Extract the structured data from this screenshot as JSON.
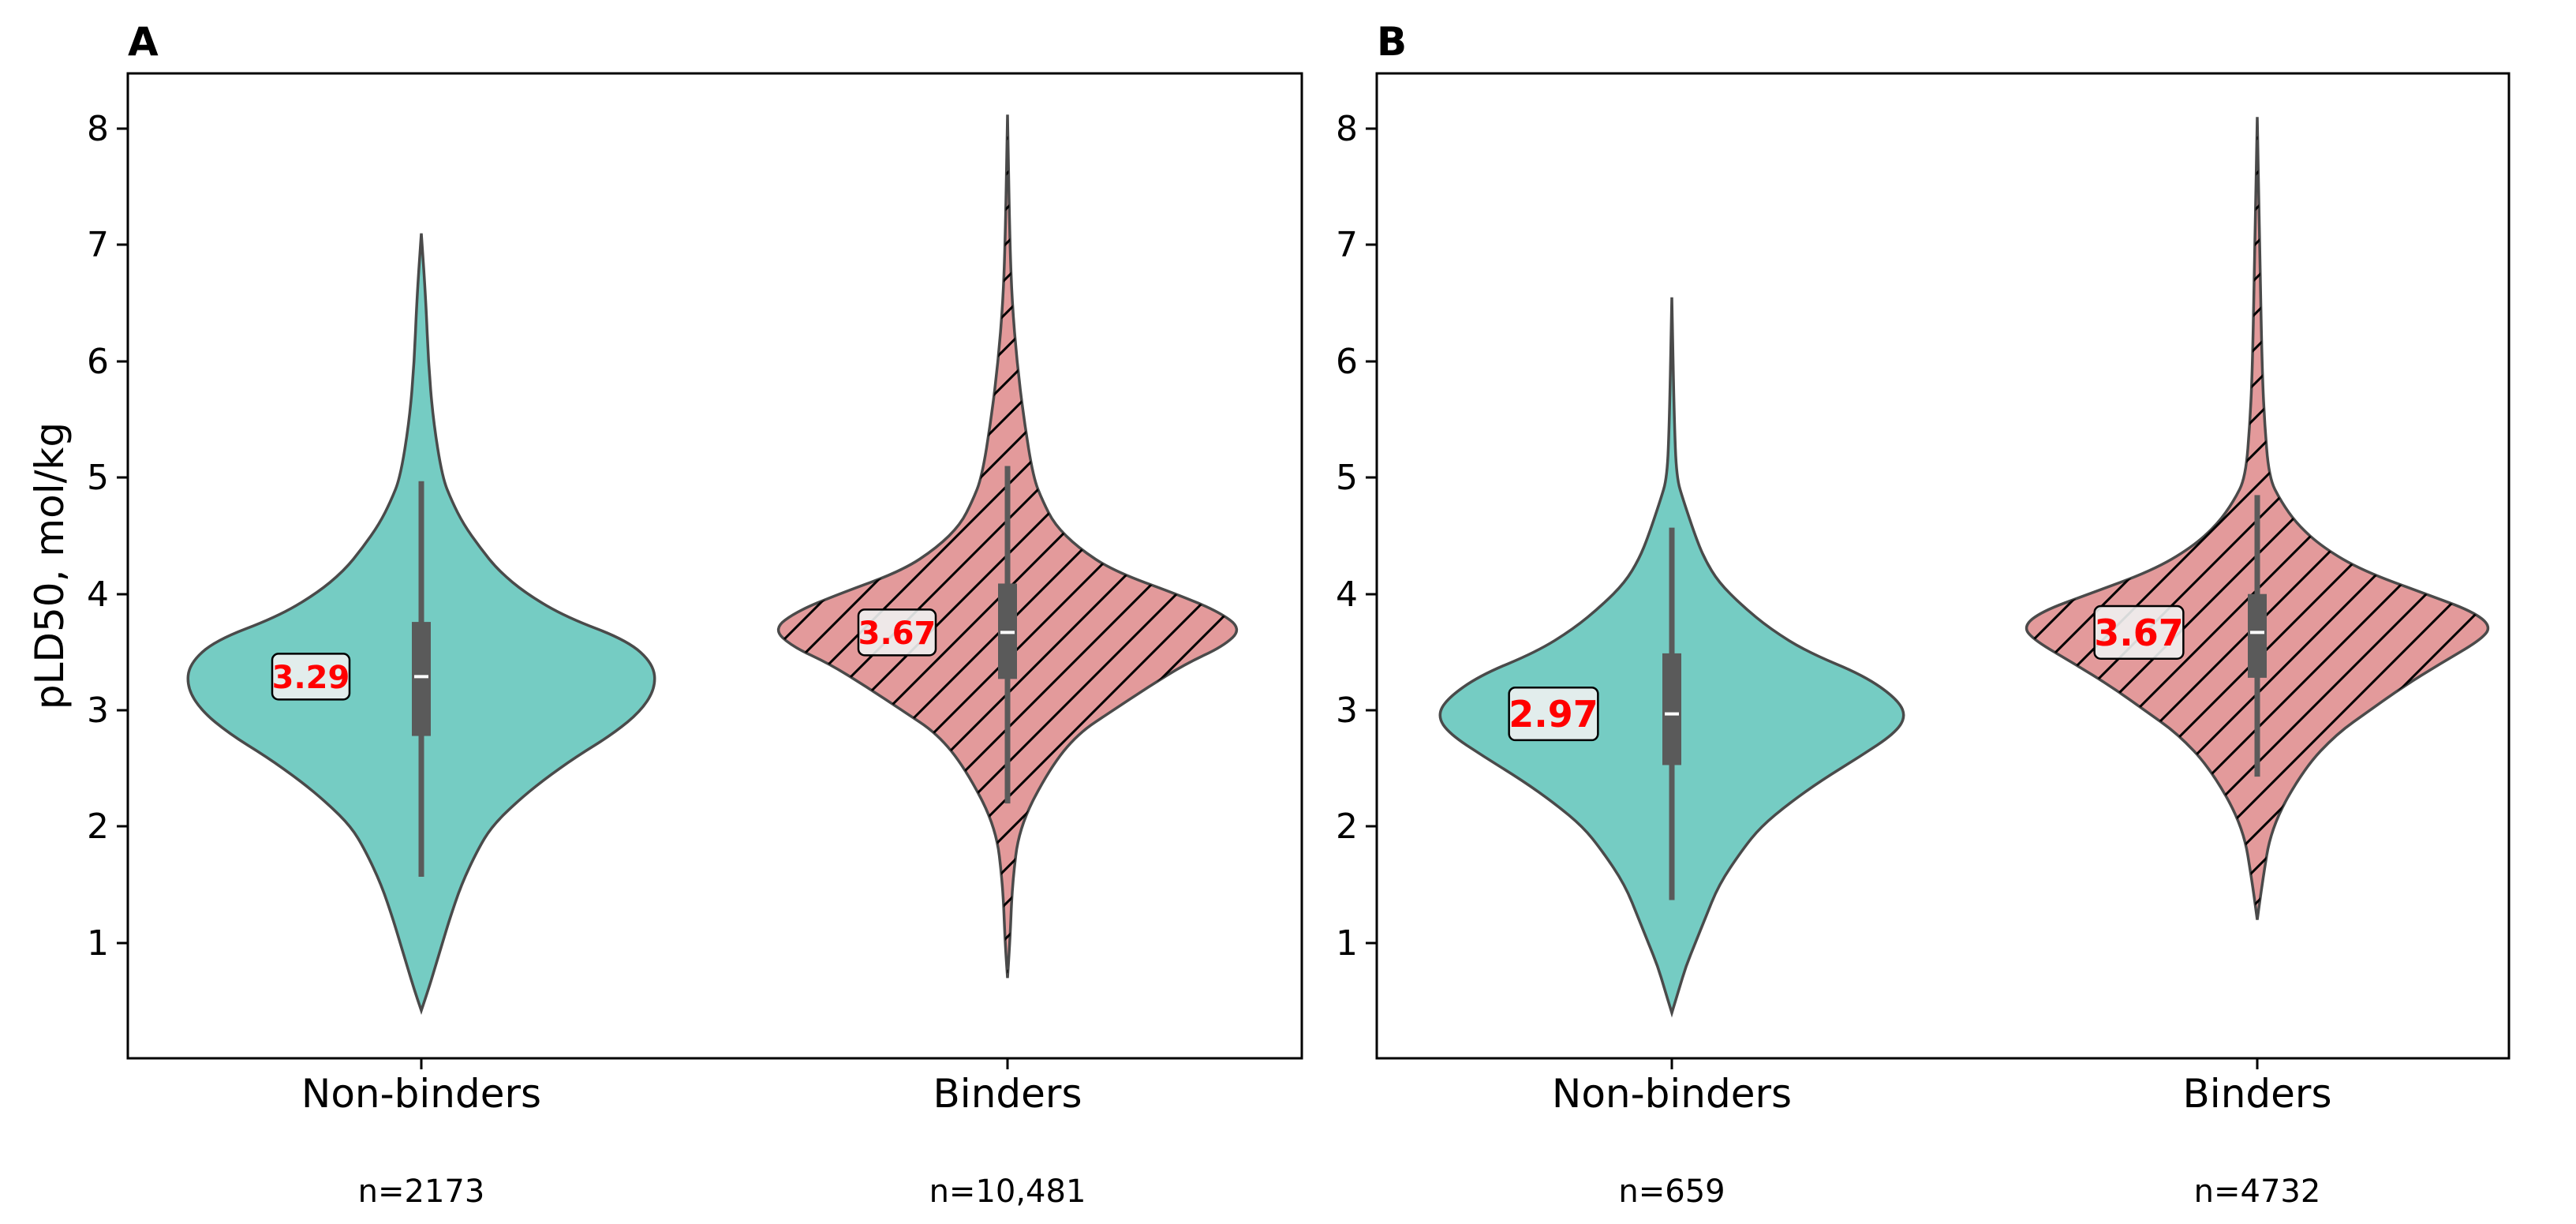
{
  "colors": {
    "non_binders_fill": "#75ccc3",
    "binders_fill": "#e39a9b",
    "violin_stroke": "#4a4a4a",
    "box_color": "#5a5a5a",
    "median_label_color": "#ff0000",
    "label_box_bg": "#eef1f1"
  },
  "chart_data": [
    {
      "type": "violin",
      "panel_label": "A",
      "ylabel": "pLD50, mol/kg",
      "ylim": [
        0.0,
        8.5
      ],
      "yticks": [
        1,
        2,
        3,
        4,
        5,
        6,
        7,
        8
      ],
      "categories": [
        "Non-binders",
        "Binders"
      ],
      "series": [
        {
          "name": "Non-binders",
          "n_label": "n=2173",
          "median": 3.29,
          "median_label": "3.29",
          "q1": 2.78,
          "q3": 3.76,
          "whisker_low": 1.57,
          "whisker_high": 4.97,
          "min": 0.42,
          "max": 7.1,
          "hatched": false,
          "density": [
            [
              0.42,
              0.0
            ],
            [
              0.6,
              0.03
            ],
            [
              0.8,
              0.06
            ],
            [
              1.0,
              0.09
            ],
            [
              1.2,
              0.12
            ],
            [
              1.5,
              0.17
            ],
            [
              1.8,
              0.24
            ],
            [
              2.0,
              0.3
            ],
            [
              2.2,
              0.4
            ],
            [
              2.4,
              0.52
            ],
            [
              2.6,
              0.66
            ],
            [
              2.8,
              0.82
            ],
            [
              3.0,
              0.94
            ],
            [
              3.2,
              1.0
            ],
            [
              3.4,
              0.99
            ],
            [
              3.6,
              0.88
            ],
            [
              3.8,
              0.62
            ],
            [
              4.0,
              0.45
            ],
            [
              4.2,
              0.33
            ],
            [
              4.4,
              0.25
            ],
            [
              4.6,
              0.18
            ],
            [
              4.8,
              0.13
            ],
            [
              5.0,
              0.09
            ],
            [
              5.5,
              0.05
            ],
            [
              6.0,
              0.03
            ],
            [
              6.5,
              0.02
            ],
            [
              7.1,
              0.0
            ]
          ]
        },
        {
          "name": "Binders",
          "n_label": "n=10,481",
          "median": 3.67,
          "median_label": "3.67",
          "q1": 3.27,
          "q3": 4.09,
          "whisker_low": 2.2,
          "whisker_high": 5.1,
          "min": 0.7,
          "max": 8.12,
          "hatched": true,
          "density": [
            [
              0.7,
              0.0
            ],
            [
              1.0,
              0.01
            ],
            [
              1.5,
              0.02
            ],
            [
              2.0,
              0.05
            ],
            [
              2.5,
              0.18
            ],
            [
              2.8,
              0.3
            ],
            [
              3.0,
              0.45
            ],
            [
              3.2,
              0.6
            ],
            [
              3.4,
              0.76
            ],
            [
              3.55,
              0.92
            ],
            [
              3.7,
              1.0
            ],
            [
              3.85,
              0.9
            ],
            [
              4.0,
              0.72
            ],
            [
              4.2,
              0.45
            ],
            [
              4.4,
              0.3
            ],
            [
              4.6,
              0.2
            ],
            [
              4.8,
              0.15
            ],
            [
              5.0,
              0.11
            ],
            [
              5.5,
              0.07
            ],
            [
              6.0,
              0.04
            ],
            [
              6.5,
              0.02
            ],
            [
              7.0,
              0.01
            ],
            [
              8.12,
              0.0
            ]
          ]
        }
      ]
    },
    {
      "type": "violin",
      "panel_label": "B",
      "ylabel": "",
      "ylim": [
        0.0,
        8.5
      ],
      "yticks": [
        1,
        2,
        3,
        4,
        5,
        6,
        7,
        8
      ],
      "categories": [
        "Non-binders",
        "Binders"
      ],
      "series": [
        {
          "name": "Non-binders",
          "n_label": "n=659",
          "median": 2.97,
          "median_label": "2.97",
          "q1": 2.53,
          "q3": 3.49,
          "whisker_low": 1.37,
          "whisker_high": 4.57,
          "min": 0.4,
          "max": 6.55,
          "hatched": false,
          "density": [
            [
              0.4,
              0.0
            ],
            [
              0.6,
              0.03
            ],
            [
              0.8,
              0.06
            ],
            [
              1.0,
              0.1
            ],
            [
              1.2,
              0.14
            ],
            [
              1.5,
              0.2
            ],
            [
              1.8,
              0.3
            ],
            [
              2.0,
              0.38
            ],
            [
              2.2,
              0.5
            ],
            [
              2.4,
              0.64
            ],
            [
              2.6,
              0.8
            ],
            [
              2.8,
              0.95
            ],
            [
              2.95,
              1.0
            ],
            [
              3.1,
              0.96
            ],
            [
              3.3,
              0.82
            ],
            [
              3.5,
              0.58
            ],
            [
              3.7,
              0.42
            ],
            [
              3.9,
              0.3
            ],
            [
              4.1,
              0.2
            ],
            [
              4.3,
              0.14
            ],
            [
              4.5,
              0.1
            ],
            [
              4.8,
              0.05
            ],
            [
              5.0,
              0.02
            ],
            [
              5.5,
              0.01
            ],
            [
              6.55,
              0.0
            ]
          ]
        },
        {
          "name": "Binders",
          "n_label": "n=4732",
          "median": 3.67,
          "median_label": "3.67",
          "q1": 3.28,
          "q3": 4.0,
          "whisker_low": 2.43,
          "whisker_high": 4.85,
          "min": 1.2,
          "max": 8.1,
          "hatched": true,
          "density": [
            [
              1.2,
              0.0
            ],
            [
              1.5,
              0.02
            ],
            [
              2.0,
              0.06
            ],
            [
              2.5,
              0.2
            ],
            [
              2.8,
              0.34
            ],
            [
              3.0,
              0.48
            ],
            [
              3.2,
              0.62
            ],
            [
              3.4,
              0.78
            ],
            [
              3.6,
              0.95
            ],
            [
              3.72,
              1.0
            ],
            [
              3.85,
              0.92
            ],
            [
              4.0,
              0.72
            ],
            [
              4.2,
              0.45
            ],
            [
              4.4,
              0.28
            ],
            [
              4.6,
              0.17
            ],
            [
              4.8,
              0.1
            ],
            [
              5.0,
              0.05
            ],
            [
              5.5,
              0.03
            ],
            [
              6.0,
              0.02
            ],
            [
              7.0,
              0.01
            ],
            [
              8.1,
              0.0
            ]
          ]
        }
      ]
    }
  ]
}
